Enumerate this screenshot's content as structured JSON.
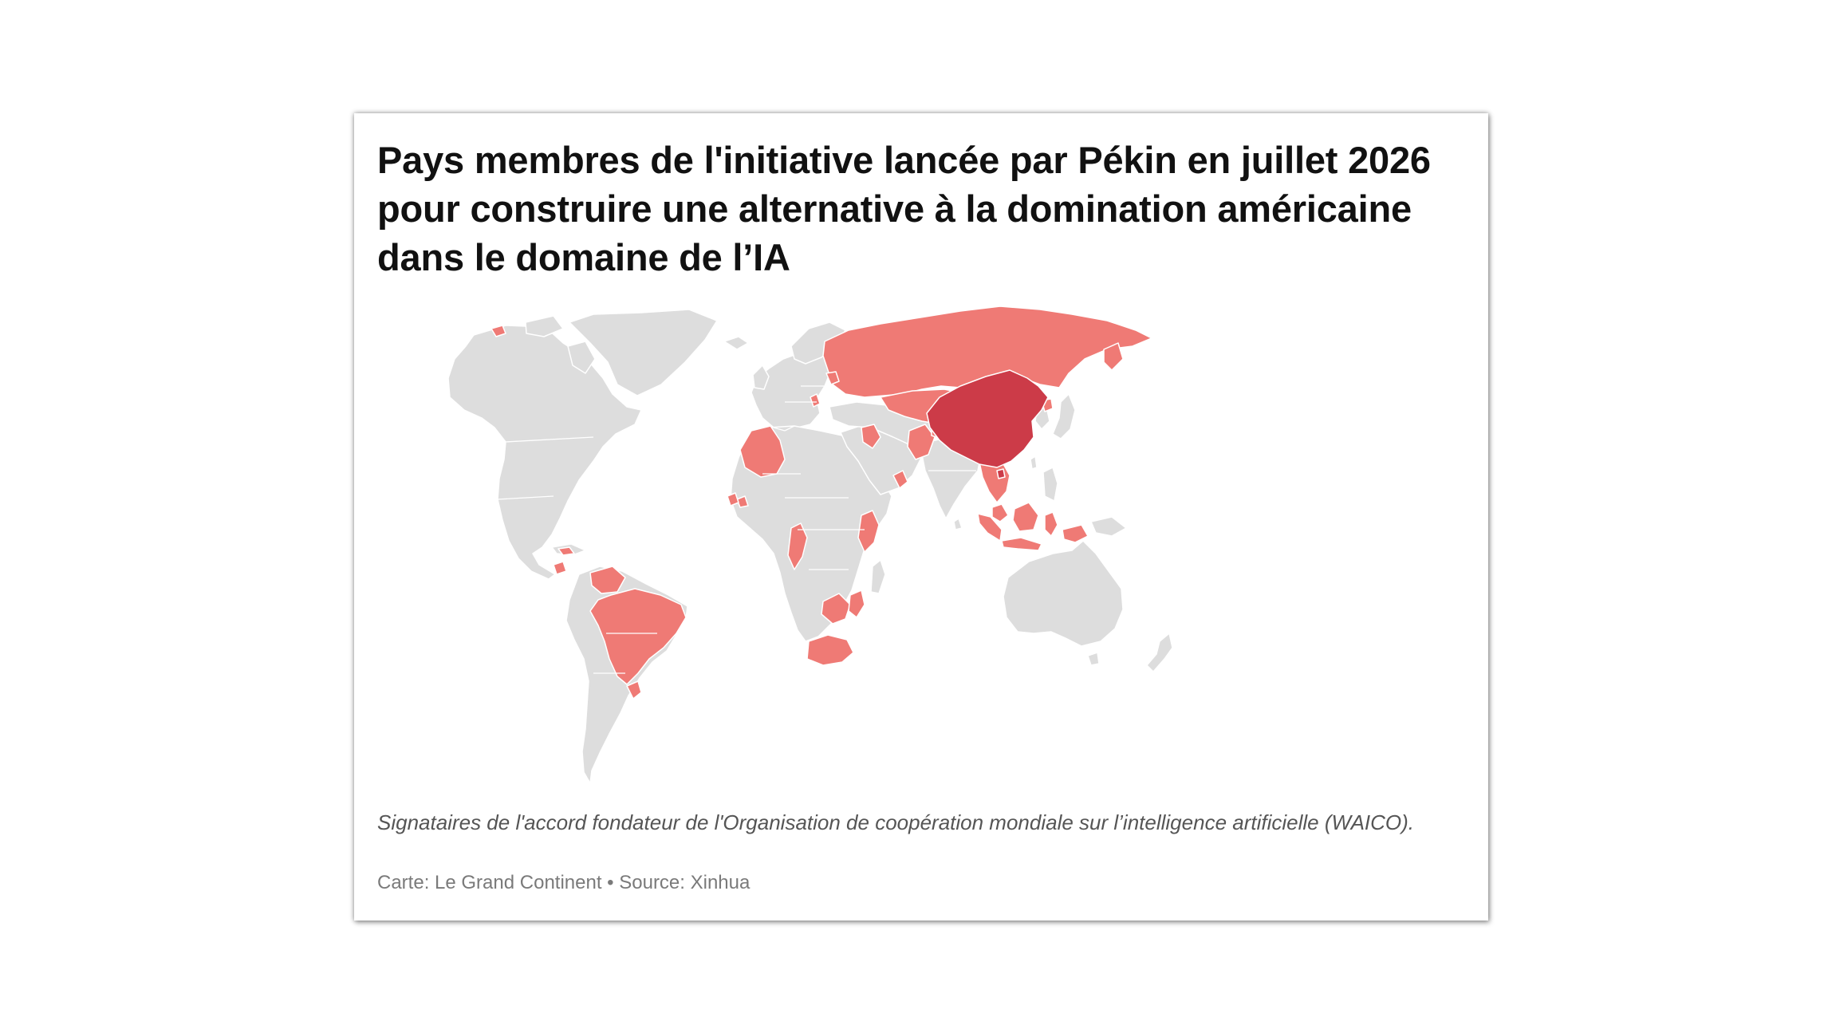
{
  "title": "Pays membres de l'initiative lancée par Pékin en juillet 2026 pour construire une alternative à la domination américaine dans le domaine de l’IA",
  "caption": "Signataires de l'accord fondateur de l'Organisation de coopération mondiale sur l’intelligence artificielle (WAICO).",
  "credits": "Carte: Le Grand Continent • Source: Xinhua",
  "colors": {
    "host_country": "#cc3b48",
    "member_country": "#ef7a75",
    "other_land": "#dddddd",
    "background": "#ffffff"
  }
}
